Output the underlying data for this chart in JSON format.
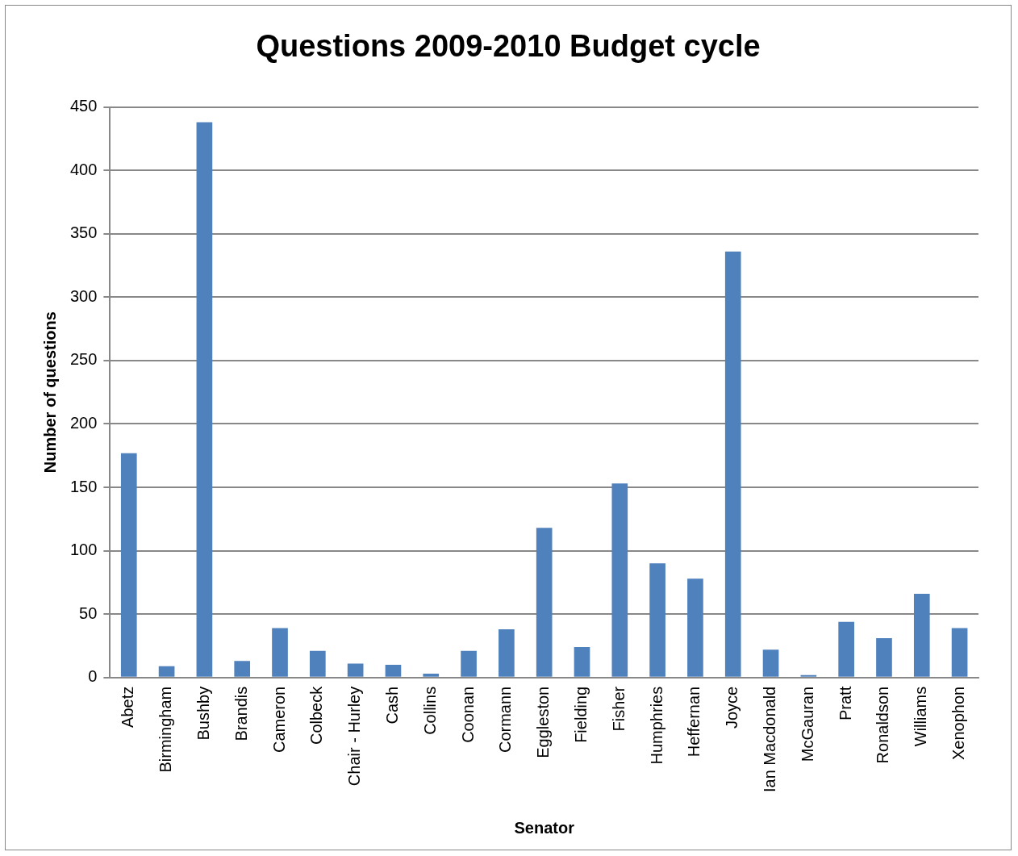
{
  "chart_data": {
    "type": "bar",
    "title": "Questions 2009-2010 Budget cycle",
    "xlabel": "Senator",
    "ylabel": "Number of questions",
    "categories": [
      "Abetz",
      "Birmingham",
      "Bushby",
      "Brandis",
      "Cameron",
      "Colbeck",
      "Chair - Hurley",
      "Cash",
      "Collins",
      "Coonan",
      "Cormann",
      "Eggleston",
      "Fielding",
      "Fisher",
      "Humphries",
      "Heffernan",
      "Joyce",
      "Ian Macdonald",
      "McGauran",
      "Pratt",
      "Ronaldson",
      "Williams",
      "Xenophon"
    ],
    "values": [
      177,
      9,
      438,
      13,
      39,
      21,
      11,
      10,
      3,
      21,
      38,
      118,
      24,
      153,
      90,
      78,
      336,
      22,
      2,
      44,
      31,
      66,
      39
    ],
    "color": "#4f81bd",
    "ylim": [
      0,
      450
    ],
    "yticks": [
      0,
      50,
      100,
      150,
      200,
      250,
      300,
      350,
      400,
      450
    ],
    "grid": "y",
    "legend": false
  }
}
